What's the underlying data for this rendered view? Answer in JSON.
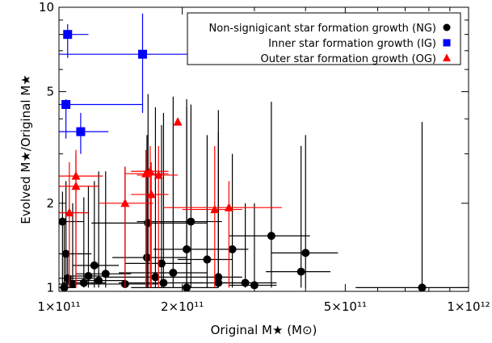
{
  "chart_data": {
    "type": "scatter",
    "title": "",
    "xlabel": "Original M★ (M⊙)",
    "ylabel": "Evolved M★/Original M★",
    "xscale": "log",
    "yscale": "log",
    "xlim": [
      100000000000.0,
      1000000000000.0
    ],
    "ylim": [
      0.97,
      10
    ],
    "grid": false,
    "legend_position": "top-right",
    "x_ticks": [
      {
        "value": 100000000000.0,
        "label": "1×10¹¹"
      },
      {
        "value": 200000000000.0,
        "label": "2×10¹¹"
      },
      {
        "value": 500000000000.0,
        "label": "5×10¹¹"
      },
      {
        "value": 1000000000000.0,
        "label": "1×10¹²"
      }
    ],
    "y_ticks": [
      {
        "value": 1,
        "label": "1"
      },
      {
        "value": 2,
        "label": "2"
      },
      {
        "value": 5,
        "label": "5"
      },
      {
        "value": 10,
        "label": "10"
      }
    ],
    "series": [
      {
        "name": "Non-signigicant star formation growth (NG)",
        "marker": "circle",
        "color": "#000000",
        "points": [
          {
            "x": 770000000000.0,
            "y": 1.0,
            "xlo": 530000000000.0,
            "xhi": 1000000000000.0,
            "ylo": 1.0,
            "yhi": 3.9
          },
          {
            "x": 400000000000.0,
            "y": 1.33,
            "xlo": 330000000000.0,
            "xhi": 480000000000.0,
            "ylo": 1.0,
            "yhi": 3.5
          },
          {
            "x": 390000000000.0,
            "y": 1.14,
            "xlo": 320000000000.0,
            "xhi": 460000000000.0,
            "ylo": 1.0,
            "yhi": 3.2
          },
          {
            "x": 330000000000.0,
            "y": 1.53,
            "xlo": 260000000000.0,
            "xhi": 410000000000.0,
            "ylo": 1.0,
            "yhi": 4.6
          },
          {
            "x": 300000000000.0,
            "y": 1.02,
            "xlo": 260000000000.0,
            "xhi": 340000000000.0,
            "ylo": 1.0,
            "yhi": 2.0
          },
          {
            "x": 285000000000.0,
            "y": 1.04,
            "xlo": 240000000000.0,
            "xhi": 340000000000.0,
            "ylo": 1.0,
            "yhi": 2.0
          },
          {
            "x": 265000000000.0,
            "y": 1.37,
            "xlo": 240000000000.0,
            "xhi": 290000000000.0,
            "ylo": 1.0,
            "yhi": 3.0
          },
          {
            "x": 245000000000.0,
            "y": 1.04,
            "xlo": 200000000000.0,
            "xhi": 290000000000.0,
            "ylo": 1.0,
            "yhi": 4.3
          },
          {
            "x": 245000000000.0,
            "y": 1.09,
            "xlo": 210000000000.0,
            "xhi": 280000000000.0,
            "ylo": 1.0,
            "yhi": 3.6
          },
          {
            "x": 230000000000.0,
            "y": 1.26,
            "xlo": 195000000000.0,
            "xhi": 265000000000.0,
            "ylo": 1.0,
            "yhi": 3.5
          },
          {
            "x": 210000000000.0,
            "y": 1.72,
            "xlo": 155000000000.0,
            "xhi": 250000000000.0,
            "ylo": 1.0,
            "yhi": 4.5
          },
          {
            "x": 205000000000.0,
            "y": 1.0,
            "xlo": 150000000000.0,
            "xhi": 245000000000.0,
            "ylo": 1.0,
            "yhi": 4.7
          },
          {
            "x": 205000000000.0,
            "y": 1.37,
            "xlo": 170000000000.0,
            "xhi": 240000000000.0,
            "ylo": 1.0,
            "yhi": 4.4
          },
          {
            "x": 190000000000.0,
            "y": 1.13,
            "xlo": 140000000000.0,
            "xhi": 230000000000.0,
            "ylo": 1.0,
            "yhi": 4.8
          },
          {
            "x": 180000000000.0,
            "y": 1.04,
            "xlo": 140000000000.0,
            "xhi": 225000000000.0,
            "ylo": 1.0,
            "yhi": 4.2
          },
          {
            "x": 178000000000.0,
            "y": 1.22,
            "xlo": 145000000000.0,
            "xhi": 210000000000.0,
            "ylo": 1.0,
            "yhi": 3.8
          },
          {
            "x": 172000000000.0,
            "y": 1.09,
            "xlo": 130000000000.0,
            "xhi": 210000000000.0,
            "ylo": 1.0,
            "yhi": 4.4
          },
          {
            "x": 165000000000.0,
            "y": 1.7,
            "xlo": 120000000000.0,
            "xhi": 230000000000.0,
            "ylo": 1.0,
            "yhi": 4.9
          },
          {
            "x": 164000000000.0,
            "y": 1.28,
            "xlo": 135000000000.0,
            "xhi": 205000000000.0,
            "ylo": 1.0,
            "yhi": 3.5
          },
          {
            "x": 145000000000.0,
            "y": 1.03,
            "xlo": 120000000000.0,
            "xhi": 175000000000.0,
            "ylo": 1.0,
            "yhi": 2.7
          },
          {
            "x": 130000000000.0,
            "y": 1.12,
            "xlo": 110000000000.0,
            "xhi": 150000000000.0,
            "ylo": 1.0,
            "yhi": 2.6
          },
          {
            "x": 125000000000.0,
            "y": 1.06,
            "xlo": 105000000000.0,
            "xhi": 145000000000.0,
            "ylo": 1.0,
            "yhi": 2.6
          },
          {
            "x": 122000000000.0,
            "y": 1.2,
            "xlo": 108000000000.0,
            "xhi": 140000000000.0,
            "ylo": 1.0,
            "yhi": 2.4
          },
          {
            "x": 118000000000.0,
            "y": 1.1,
            "xlo": 104000000000.0,
            "xhi": 132000000000.0,
            "ylo": 1.0,
            "yhi": 2.3
          },
          {
            "x": 115000000000.0,
            "y": 1.04,
            "xlo": 102000000000.0,
            "xhi": 130000000000.0,
            "ylo": 1.0,
            "yhi": 2.1
          },
          {
            "x": 108000000000.0,
            "y": 1.03,
            "xlo": 100000000000.0,
            "xhi": 125000000000.0,
            "ylo": 1.0,
            "yhi": 2.0
          },
          {
            "x": 104000000000.0,
            "y": 1.32,
            "xlo": 100000000000.0,
            "xhi": 120000000000.0,
            "ylo": 1.0,
            "yhi": 2.4
          },
          {
            "x": 102000000000.0,
            "y": 1.72,
            "xlo": 100000000000.0,
            "xhi": 115000000000.0,
            "ylo": 1.0,
            "yhi": 2.2
          },
          {
            "x": 103000000000.0,
            "y": 1.0,
            "xlo": 100000000000.0,
            "xhi": 110000000000.0,
            "ylo": 1.0,
            "yhi": 1.7
          },
          {
            "x": 105000000000.0,
            "y": 1.08,
            "xlo": 100000000000.0,
            "xhi": 122000000000.0,
            "ylo": 1.0,
            "yhi": 1.3
          }
        ]
      },
      {
        "name": "Inner star formation growth (IG)",
        "marker": "square",
        "color": "#0000ff",
        "points": [
          {
            "x": 105000000000.0,
            "y": 8.0,
            "xlo": 102000000000.0,
            "xhi": 118000000000.0,
            "ylo": 6.6,
            "yhi": 8.7
          },
          {
            "x": 160000000000.0,
            "y": 6.8,
            "xlo": 100000000000.0,
            "xhi": 240000000000.0,
            "ylo": 4.2,
            "yhi": 9.5
          },
          {
            "x": 104000000000.0,
            "y": 4.5,
            "xlo": 100000000000.0,
            "xhi": 160000000000.0,
            "ylo": 3.4,
            "yhi": 4.7
          },
          {
            "x": 113000000000.0,
            "y": 3.6,
            "xlo": 100000000000.0,
            "xhi": 132000000000.0,
            "ylo": 3.0,
            "yhi": 4.2
          }
        ]
      },
      {
        "name": "Outer star formation growth (OG)",
        "marker": "triangle",
        "color": "#ff0000",
        "points": [
          {
            "x": 195000000000.0,
            "y": 3.9
          },
          {
            "x": 167000000000.0,
            "y": 2.6,
            "xlo": 150000000000.0,
            "xhi": 185000000000.0,
            "ylo": 1.0,
            "yhi": 3.2
          },
          {
            "x": 175000000000.0,
            "y": 2.52,
            "xlo": 155000000000.0,
            "xhi": 195000000000.0,
            "ylo": 1.0,
            "yhi": 3.2
          },
          {
            "x": 163000000000.0,
            "y": 2.55,
            "xlo": 145000000000.0,
            "xhi": 185000000000.0,
            "ylo": 1.0,
            "yhi": 3.1
          },
          {
            "x": 168000000000.0,
            "y": 2.15,
            "xlo": 150000000000.0,
            "xhi": 185000000000.0,
            "ylo": 1.0,
            "yhi": 2.8
          },
          {
            "x": 240000000000.0,
            "y": 1.9,
            "xlo": 200000000000.0,
            "xhi": 280000000000.0,
            "ylo": 1.0,
            "yhi": 3.2
          },
          {
            "x": 260000000000.0,
            "y": 1.93,
            "xlo": 180000000000.0,
            "xhi": 350000000000.0,
            "ylo": 1.0,
            "yhi": 2.4
          },
          {
            "x": 145000000000.0,
            "y": 2.0,
            "xlo": 125000000000.0,
            "xhi": 170000000000.0,
            "ylo": 1.0,
            "yhi": 2.7
          },
          {
            "x": 110000000000.0,
            "y": 2.5,
            "xlo": 100000000000.0,
            "xhi": 128000000000.0,
            "ylo": 1.0,
            "yhi": 3.1
          },
          {
            "x": 110000000000.0,
            "y": 2.3,
            "xlo": 100000000000.0,
            "xhi": 125000000000.0,
            "ylo": 1.0,
            "yhi": 3.0
          },
          {
            "x": 106000000000.0,
            "y": 1.85,
            "xlo": 100000000000.0,
            "xhi": 118000000000.0,
            "ylo": 1.0,
            "yhi": 2.8
          }
        ]
      }
    ]
  }
}
